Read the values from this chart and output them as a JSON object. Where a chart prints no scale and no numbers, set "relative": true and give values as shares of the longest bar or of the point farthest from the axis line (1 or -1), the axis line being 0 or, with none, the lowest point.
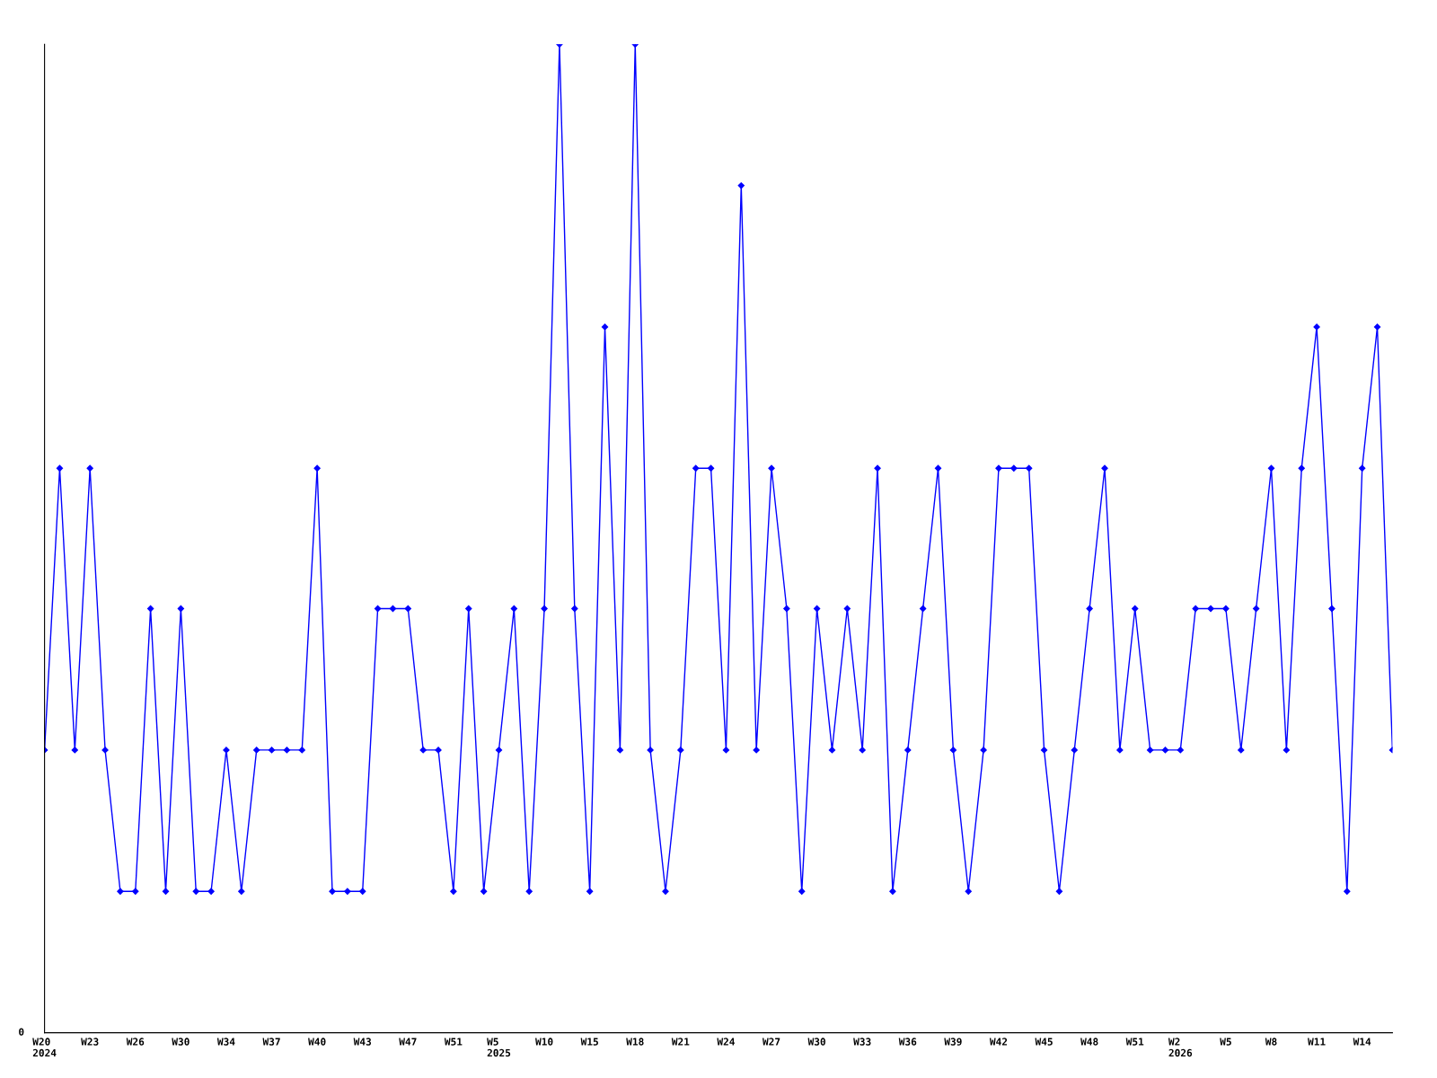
{
  "chart_data": {
    "type": "line",
    "relative": true,
    "marker": "diamond",
    "line_style": "solid",
    "grid": false,
    "legend": false,
    "categories": [
      "W20\n2024",
      null,
      null,
      "W23",
      null,
      null,
      "W26",
      null,
      null,
      "W30",
      null,
      null,
      "W34",
      null,
      null,
      "W37",
      null,
      null,
      "W40",
      null,
      null,
      "W43",
      null,
      null,
      "W47",
      null,
      null,
      "W51",
      null,
      null,
      "W5\n2025",
      null,
      null,
      "W10",
      null,
      null,
      "W15",
      null,
      null,
      "W18",
      null,
      null,
      "W21",
      null,
      null,
      "W24",
      null,
      null,
      "W27",
      null,
      null,
      "W30",
      null,
      null,
      "W33",
      null,
      null,
      "W36",
      null,
      null,
      "W39",
      null,
      null,
      "W42",
      null,
      null,
      "W45",
      null,
      null,
      "W48",
      null,
      null,
      "W51",
      null,
      null,
      "W2\n2026",
      null,
      null,
      "W5",
      null,
      null,
      "W8",
      null,
      null,
      "W11",
      null,
      null,
      "W14",
      null,
      null
    ],
    "series": [
      {
        "color": "#0000ff",
        "values": [
          0.286,
          0.571,
          0.286,
          0.571,
          0.286,
          0.143,
          0.143,
          0.429,
          0.143,
          0.429,
          0.143,
          0.143,
          0.286,
          0.143,
          0.286,
          0.286,
          0.286,
          0.286,
          0.571,
          0.143,
          0.143,
          0.143,
          0.429,
          0.429,
          0.429,
          0.286,
          0.286,
          0.143,
          0.429,
          0.143,
          0.286,
          0.429,
          0.143,
          0.429,
          1,
          0.429,
          0.143,
          0.714,
          0.286,
          1,
          0.286,
          0.143,
          0.286,
          0.571,
          0.571,
          0.286,
          0.857,
          0.286,
          0.571,
          0.429,
          0.143,
          0.429,
          0.286,
          0.429,
          0.286,
          0.571,
          0.143,
          0.286,
          0.429,
          0.571,
          0.286,
          0.143,
          0.286,
          0.571,
          0.571,
          0.571,
          0.286,
          0.143,
          0.286,
          0.429,
          0.571,
          0.286,
          0.429,
          0.286,
          0.286,
          0.286,
          0.429,
          0.429,
          0.429,
          0.286,
          0.429,
          0.571,
          0.286,
          0.571,
          0.714,
          0.429,
          0.143,
          0.571,
          0.714,
          0.286
        ]
      }
    ],
    "annotations": [
      "0"
    ]
  }
}
